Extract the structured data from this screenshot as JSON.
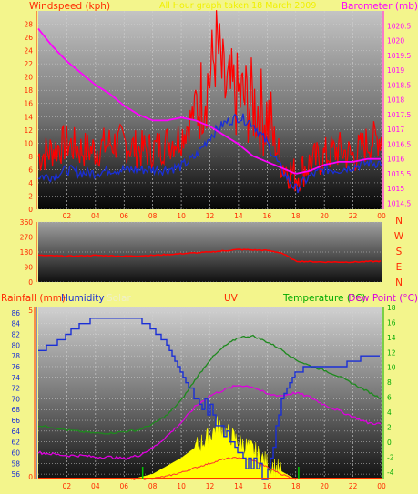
{
  "colors": {
    "page_bg": "#f3f58c",
    "wind": "#ff0000",
    "gust": "#1a2fd6",
    "baro": "#ff00ff",
    "temp": "#1e8a1e",
    "humidity": "#1a2fd6",
    "dew": "#dd00dd",
    "solar": "#ffff00",
    "uv": "#ff3030",
    "rain": "#ff3000",
    "left_axis": "#ff2800",
    "right_temp_axis": "#00aa00"
  },
  "header": {
    "left_title": "Windspeed (kph)",
    "center_title": "All Hour graph taken 18 March 2009",
    "right_title": "Barometer (mb)"
  },
  "bottom_header": {
    "rain": "Rainfall (mm)",
    "humidity": "Humidity",
    "solar": "Solar",
    "uv": "UV",
    "temp": "Temperature (°C)",
    "dew": "Dew Point (°C)"
  },
  "compass": [
    "N",
    "W",
    "S",
    "E",
    "N"
  ],
  "chart_data": [
    {
      "type": "line",
      "title": "All Hour graph taken 18 March 2009",
      "ylabel": "Windspeed (kph)",
      "y2label": "Barometer (mb)",
      "xlim": [
        0,
        24
      ],
      "ylim": [
        0,
        30
      ],
      "y2lim": [
        1014.3,
        1021
      ],
      "x_ticks": [
        "02",
        "04",
        "06",
        "08",
        "10",
        "12",
        "14",
        "16",
        "18",
        "20",
        "22",
        "00"
      ],
      "y_ticks": [
        0,
        2,
        4,
        6,
        8,
        10,
        12,
        14,
        16,
        18,
        20,
        22,
        24,
        26,
        28
      ],
      "y2_ticks": [
        "1014.5",
        "1015",
        "1015.5",
        "1016",
        "1016.5",
        "1017",
        "1017.5",
        "1018",
        "1018.5",
        "1019",
        "1019.5",
        "1020",
        "1020.5"
      ],
      "series": [
        {
          "name": "Windspeed (kph)",
          "x": [
            0,
            1,
            2,
            3,
            4,
            5,
            6,
            7,
            8,
            9,
            10,
            11,
            12,
            12.5,
            13,
            14,
            15,
            16,
            17,
            18,
            19,
            20,
            21,
            22,
            23,
            24
          ],
          "values": [
            8,
            9,
            10,
            9,
            9,
            10,
            10,
            9,
            9,
            10,
            11,
            15,
            20,
            25,
            18,
            17,
            16,
            14,
            7,
            5,
            7,
            8,
            9,
            8,
            10,
            11
          ]
        },
        {
          "name": "Gust",
          "x": [
            0,
            1,
            2,
            3,
            4,
            5,
            6,
            7,
            8,
            9,
            10,
            11,
            12,
            13,
            14,
            15,
            16,
            17,
            18,
            19,
            20,
            21,
            22,
            23,
            24
          ],
          "values": [
            5,
            5,
            6,
            5.5,
            5.5,
            6,
            6,
            6,
            6,
            6,
            6.5,
            8,
            11,
            13,
            14,
            13,
            10,
            6,
            3,
            5,
            6,
            6,
            6.5,
            7,
            7
          ]
        },
        {
          "name": "Barometer (mb)",
          "x": [
            0,
            1,
            2,
            3,
            4,
            5,
            6,
            7,
            8,
            9,
            10,
            11,
            12,
            13,
            14,
            15,
            16,
            17,
            18,
            19,
            20,
            21,
            22,
            23,
            24
          ],
          "values": [
            1020.4,
            1019.8,
            1019.3,
            1018.9,
            1018.5,
            1018.2,
            1017.8,
            1017.5,
            1017.3,
            1017.3,
            1017.4,
            1017.3,
            1017.1,
            1016.8,
            1016.5,
            1016.1,
            1015.9,
            1015.7,
            1015.5,
            1015.6,
            1015.8,
            1015.9,
            1015.9,
            1016.0,
            1016.0
          ]
        }
      ]
    },
    {
      "type": "line",
      "ylabel": "Wind direction",
      "xlim": [
        0,
        24
      ],
      "ylim": [
        0,
        360
      ],
      "y_ticks": [
        0,
        90,
        180,
        270,
        360
      ],
      "series": [
        {
          "name": "Wind direction",
          "x": [
            0,
            2,
            4,
            6,
            8,
            10,
            12,
            14,
            16,
            17,
            18,
            20,
            22,
            24
          ],
          "values": [
            160,
            155,
            160,
            155,
            160,
            170,
            180,
            195,
            190,
            175,
            125,
            120,
            120,
            125
          ]
        }
      ]
    },
    {
      "type": "line",
      "xlim": [
        0,
        24
      ],
      "ylim": [
        55,
        87
      ],
      "y_ticks": [
        56,
        58,
        60,
        62,
        64,
        66,
        68,
        70,
        72,
        74,
        76,
        78,
        80,
        82,
        84,
        86
      ],
      "y2lim": [
        -5,
        18
      ],
      "y2_ticks": [
        -4,
        -2,
        0,
        2,
        4,
        6,
        8,
        10,
        12,
        14,
        16,
        18
      ],
      "rain_ticks": [
        0,
        5
      ],
      "series": [
        {
          "name": "Humidity",
          "x": [
            0,
            1,
            2,
            3,
            4,
            5,
            6,
            7,
            8,
            9,
            10,
            10.5,
            11,
            11.5,
            12,
            12.5,
            13,
            14,
            15,
            16,
            17,
            18,
            19,
            20,
            21,
            22,
            23,
            24
          ],
          "values": [
            79,
            80,
            82,
            84,
            85,
            85,
            85,
            85,
            83,
            80,
            75,
            72,
            70,
            69,
            68,
            66,
            64,
            60,
            58,
            56,
            70,
            75,
            76,
            76,
            76,
            77,
            78,
            78
          ]
        },
        {
          "name": "Temperature (°C)",
          "x": [
            0,
            1,
            2,
            3,
            4,
            5,
            6,
            7,
            8,
            9,
            10,
            11,
            12,
            13,
            14,
            15,
            16,
            17,
            18,
            19,
            20,
            21,
            22,
            23,
            24
          ],
          "values": [
            2.2,
            2.0,
            1.6,
            1.4,
            1.2,
            1.2,
            1.4,
            1.6,
            2.4,
            3.6,
            5.6,
            8.4,
            11.0,
            12.8,
            14.0,
            14.2,
            13.4,
            12.4,
            11.0,
            10.2,
            9.6,
            8.8,
            7.8,
            6.8,
            5.8
          ]
        },
        {
          "name": "Dew Point (°C)",
          "x": [
            0,
            1,
            2,
            3,
            4,
            5,
            6,
            7,
            8,
            9,
            10,
            11,
            12,
            13,
            14,
            15,
            16,
            17,
            18,
            19,
            20,
            21,
            22,
            23,
            24
          ],
          "values": [
            -1.4,
            -1.6,
            -1.8,
            -1.8,
            -2.0,
            -2.0,
            -2.2,
            -1.8,
            -0.8,
            0.8,
            2.6,
            4.8,
            6.2,
            7.0,
            7.6,
            7.4,
            6.4,
            6.2,
            6.6,
            6.0,
            5.0,
            4.2,
            3.4,
            2.6,
            2.4
          ]
        },
        {
          "name": "Solar",
          "x": [
            6.5,
            8,
            9,
            10,
            11,
            12,
            12.5,
            13,
            14,
            15,
            16,
            17,
            18
          ],
          "values": [
            55,
            56,
            57.5,
            59,
            61,
            63,
            65,
            64,
            62,
            60.5,
            58,
            56.5,
            55
          ]
        },
        {
          "name": "UV",
          "x": [
            6.5,
            8,
            9,
            10,
            11,
            12,
            13,
            14,
            15,
            16,
            17,
            18
          ],
          "values": [
            55,
            55.2,
            55.6,
            56.3,
            57.2,
            58,
            58.8,
            59.1,
            58.6,
            57.3,
            56,
            55
          ]
        },
        {
          "name": "Rainfall (mm)",
          "x": [
            0,
            24
          ],
          "values": [
            0,
            0
          ]
        }
      ]
    }
  ]
}
